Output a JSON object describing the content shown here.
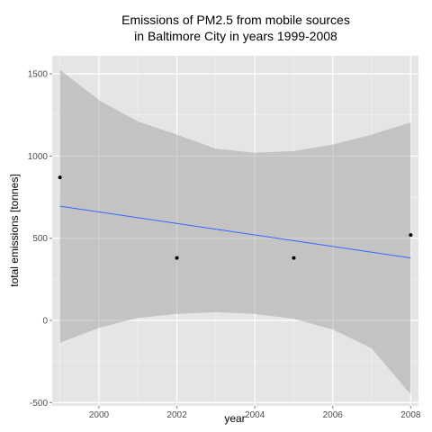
{
  "chart_data": {
    "type": "scatter",
    "title_lines": [
      "Emissions of PM2.5 from mobile sources",
      "in Baltimore City in years 1999-2008"
    ],
    "xlabel": "year",
    "ylabel": "total emissions [tonnes]",
    "xlim": [
      1998.8,
      2008.2
    ],
    "ylim": [
      -520,
      1610
    ],
    "x_ticks": [
      2000,
      2002,
      2004,
      2006,
      2008
    ],
    "y_ticks": [
      -500,
      0,
      500,
      1000,
      1500
    ],
    "points": [
      {
        "x": 1999,
        "y": 870
      },
      {
        "x": 2002,
        "y": 380
      },
      {
        "x": 2005,
        "y": 380
      },
      {
        "x": 2008,
        "y": 520
      }
    ],
    "fit_line": {
      "x": [
        1999,
        2008
      ],
      "y": [
        695,
        380
      ],
      "color": "#3366ff"
    },
    "confidence_band": {
      "x": [
        1999,
        2000,
        2001,
        2002,
        2003,
        2004,
        2005,
        2006,
        2007,
        2008
      ],
      "upper": [
        1525,
        1340,
        1210,
        1130,
        1045,
        1020,
        1030,
        1070,
        1130,
        1205
      ],
      "lower": [
        -135,
        -45,
        15,
        40,
        50,
        40,
        10,
        -55,
        -170,
        -450
      ],
      "color": "#999999"
    },
    "grid": true,
    "panel_background": "#e5e5e5"
  }
}
